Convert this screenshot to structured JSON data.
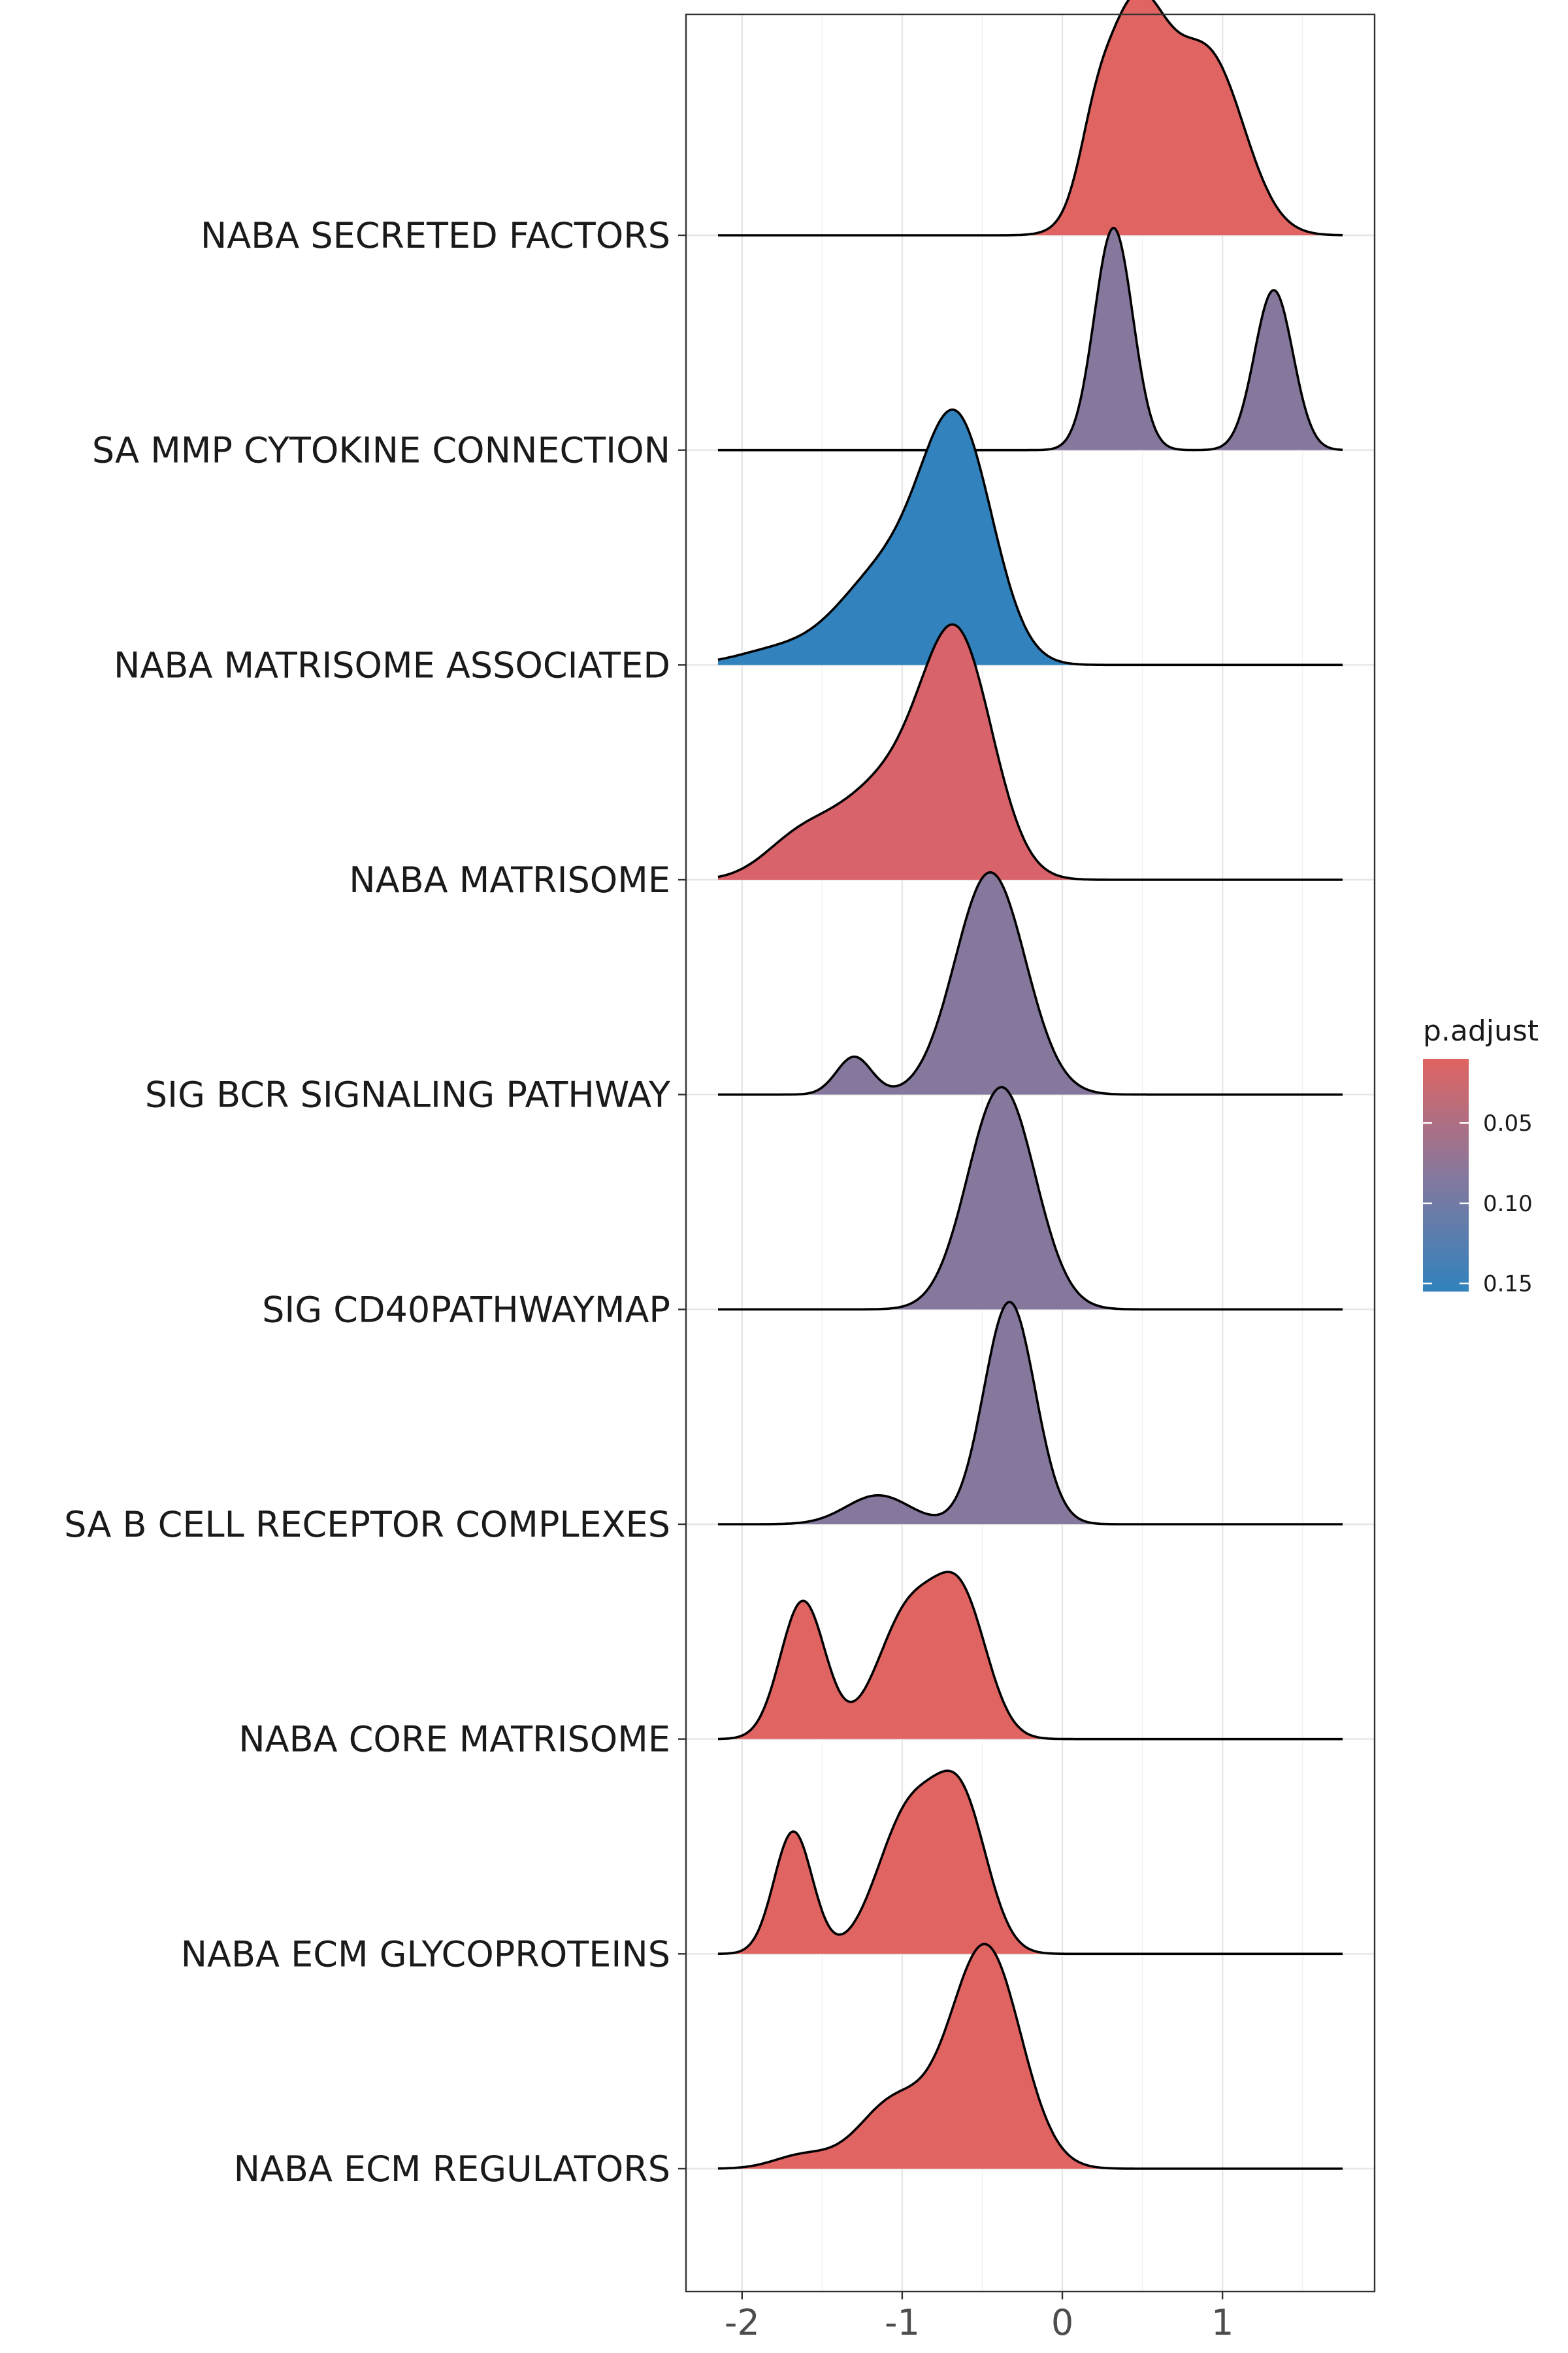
{
  "chart_data": {
    "type": "ridgeline",
    "xlabel": "",
    "ylabel": "",
    "xlim": [
      -2.35,
      1.95
    ],
    "x_ticks": [
      "-2",
      "-1",
      "0",
      "1"
    ],
    "x_tick_values": [
      -2,
      -1,
      0,
      1
    ],
    "legend": {
      "title": "p.adjust",
      "placement": "right",
      "ticks": [
        "0.05",
        "0.10",
        "0.15"
      ],
      "tick_values": [
        0.05,
        0.1,
        0.15
      ],
      "range": [
        0.01,
        0.155
      ],
      "colors": [
        "#E06461",
        "#86789D",
        "#3182BD"
      ]
    },
    "series": [
      {
        "name": "NABA SECRETED FACTORS",
        "p_adjust": 0.01,
        "color": "#E06461",
        "components": [
          [
            0.45,
            0.2,
            1.0
          ],
          [
            0.92,
            0.22,
            0.78
          ],
          [
            0.2,
            0.1,
            0.2
          ]
        ]
      },
      {
        "name": "SA MMP CYTOKINE CONNECTION",
        "p_adjust": 0.1,
        "color": "#86789D",
        "components": [
          [
            0.32,
            0.12,
            1.0
          ],
          [
            1.32,
            0.12,
            0.72
          ]
        ]
      },
      {
        "name": "NABA MATRISOME ASSOCIATED",
        "p_adjust": 0.155,
        "color": "#3182BD",
        "components": [
          [
            -0.65,
            0.22,
            1.0
          ],
          [
            -1.1,
            0.3,
            0.42
          ],
          [
            -1.8,
            0.25,
            0.06
          ]
        ]
      },
      {
        "name": "NABA MATRISOME",
        "p_adjust": 0.03,
        "color": "#D9636A",
        "components": [
          [
            -0.65,
            0.22,
            1.0
          ],
          [
            -1.1,
            0.3,
            0.42
          ],
          [
            -1.65,
            0.22,
            0.16
          ]
        ]
      },
      {
        "name": "SIG BCR SIGNALING PATHWAY",
        "p_adjust": 0.1,
        "color": "#86789D",
        "components": [
          [
            -0.45,
            0.22,
            1.0
          ],
          [
            -1.3,
            0.11,
            0.17
          ]
        ]
      },
      {
        "name": "SIG CD40PATHWAYMAP",
        "p_adjust": 0.1,
        "color": "#86789D",
        "components": [
          [
            -0.38,
            0.21,
            1.0
          ]
        ]
      },
      {
        "name": "SA B CELL RECEPTOR COMPLEXES",
        "p_adjust": 0.1,
        "color": "#86789D",
        "components": [
          [
            -0.33,
            0.16,
            1.0
          ],
          [
            -1.15,
            0.2,
            0.13
          ]
        ]
      },
      {
        "name": "NABA CORE MATRISOME",
        "p_adjust": 0.01,
        "color": "#E06461",
        "components": [
          [
            -1.62,
            0.14,
            0.62
          ],
          [
            -0.95,
            0.2,
            0.58
          ],
          [
            -0.62,
            0.16,
            0.55
          ]
        ]
      },
      {
        "name": "NABA ECM GLYCOPROTEINS",
        "p_adjust": 0.01,
        "color": "#E06461",
        "components": [
          [
            -1.68,
            0.12,
            0.55
          ],
          [
            -0.95,
            0.2,
            0.64
          ],
          [
            -0.62,
            0.16,
            0.6
          ]
        ]
      },
      {
        "name": "NABA ECM REGULATORS",
        "p_adjust": 0.01,
        "color": "#E06461",
        "components": [
          [
            -0.48,
            0.22,
            1.0
          ],
          [
            -1.05,
            0.22,
            0.3
          ],
          [
            -1.62,
            0.18,
            0.06
          ]
        ]
      }
    ]
  }
}
